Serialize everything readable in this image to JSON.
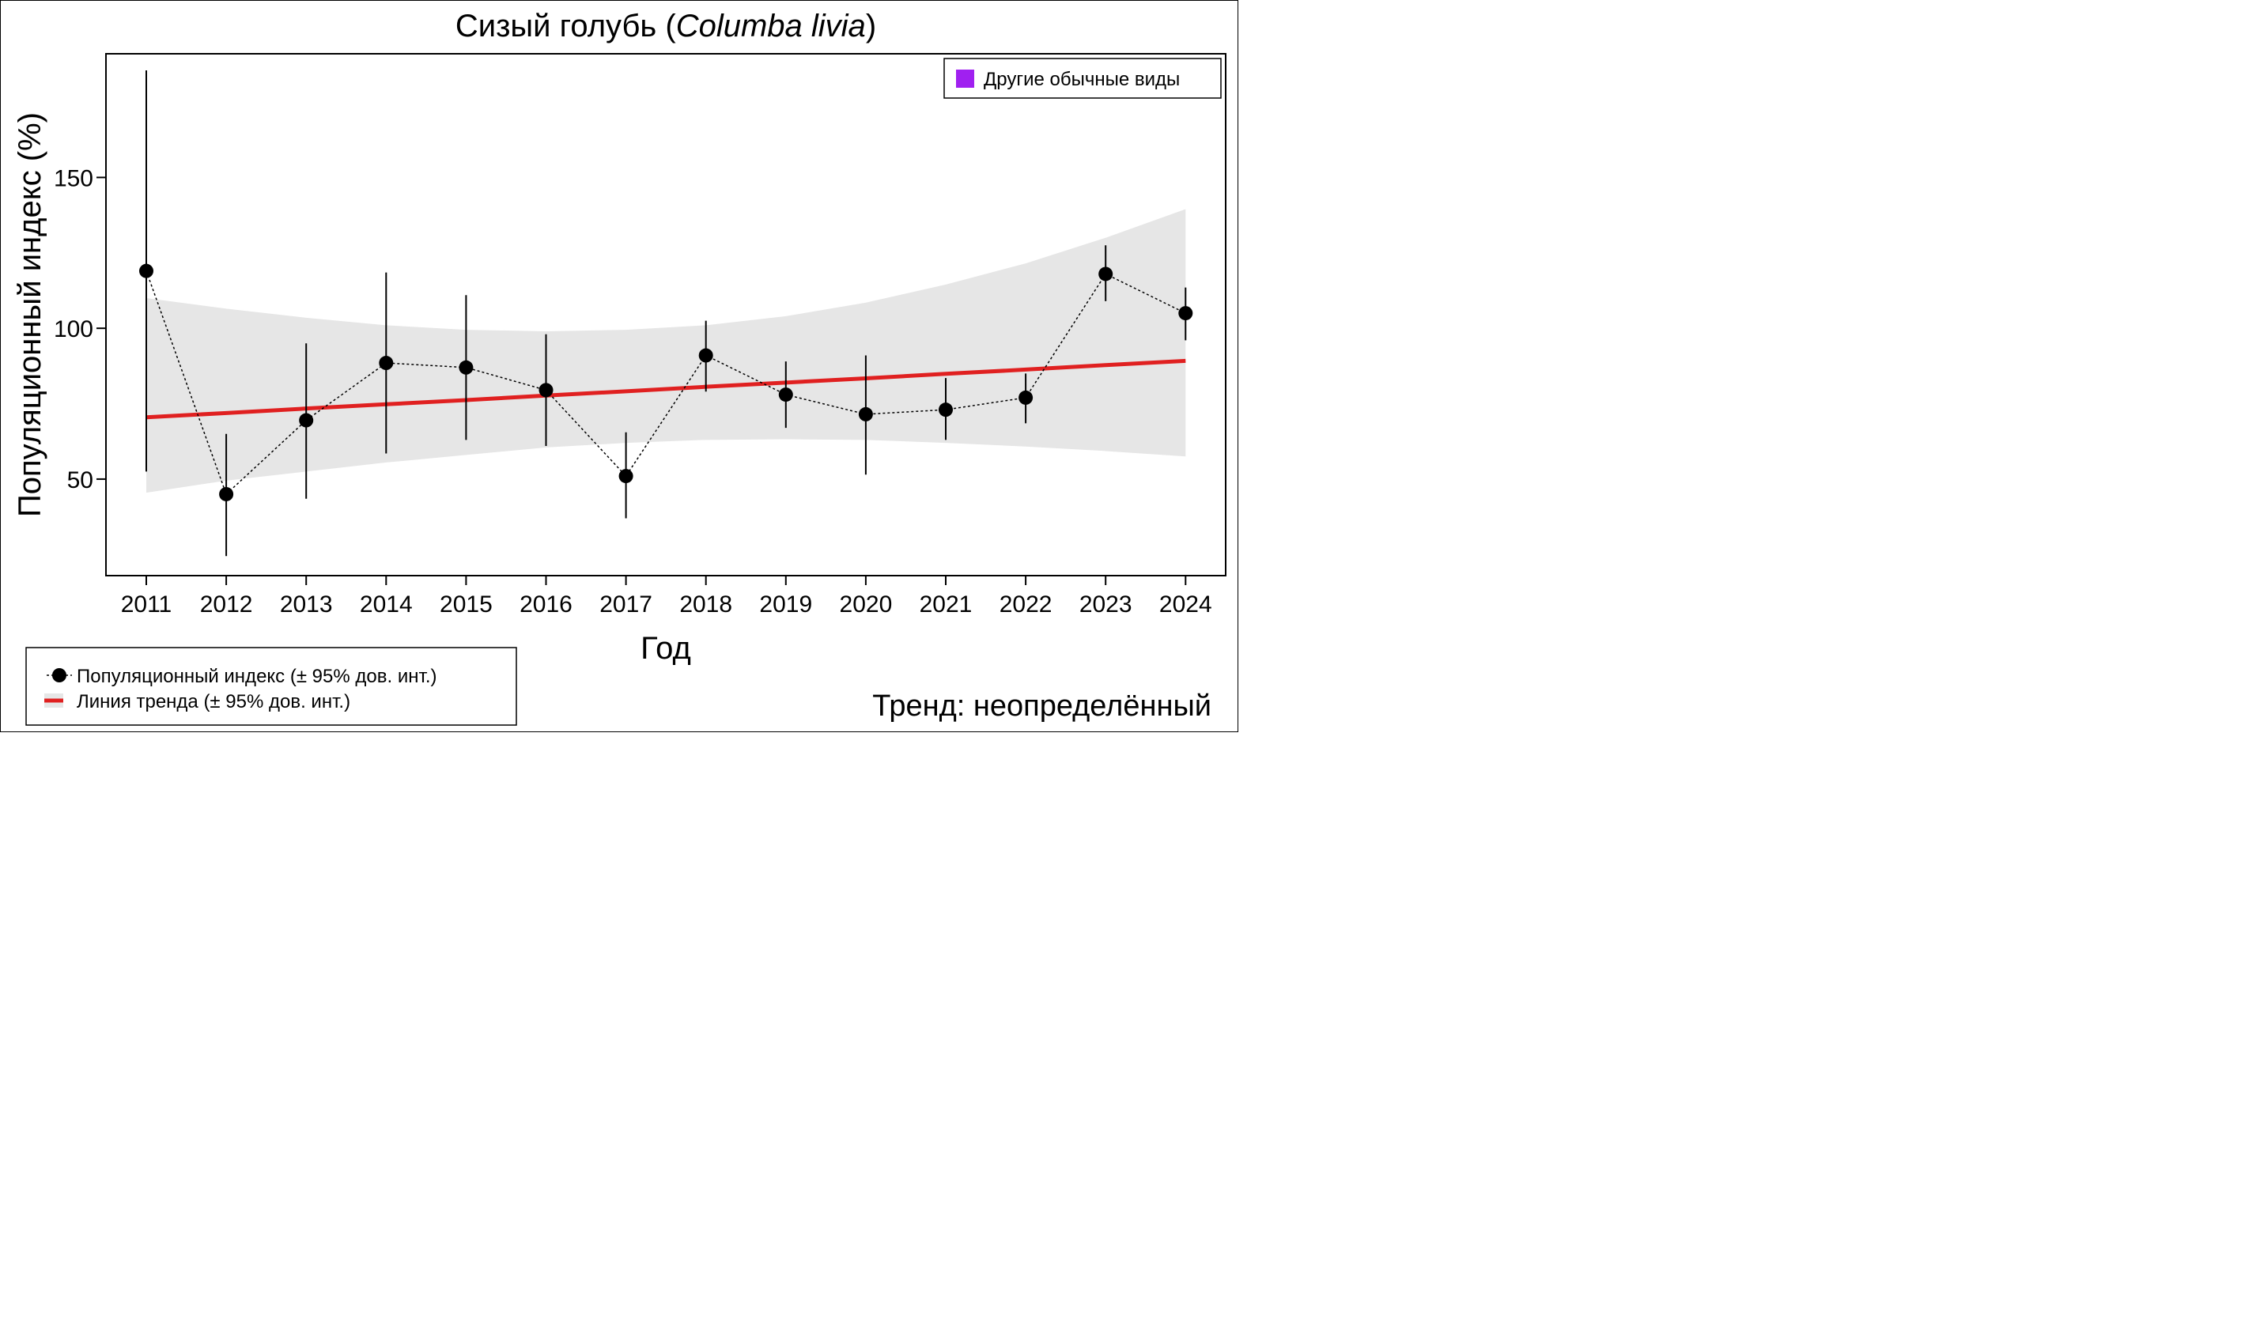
{
  "chart_data": {
    "type": "line",
    "title": {
      "common_name": "Сизый голубь",
      "open_paren": "(",
      "latin_name": "Columba livia",
      "close_paren": ")"
    },
    "xlabel": "Год",
    "ylabel": "Популяционный индекс (%)",
    "categories": [
      "2011",
      "2012",
      "2013",
      "2014",
      "2015",
      "2016",
      "2017",
      "2018",
      "2019",
      "2020",
      "2021",
      "2022",
      "2023",
      "2024"
    ],
    "yticks": [
      50,
      100,
      150
    ],
    "ylim": [
      18,
      191
    ],
    "series": [
      {
        "name": "Популяционный индекс (± 95% дов. инт.)",
        "values": [
          119,
          45,
          69.5,
          88.5,
          87,
          79.5,
          51,
          91,
          78,
          71.5,
          73,
          77,
          118,
          105
        ],
        "ci_low": [
          52.5,
          24.5,
          43.5,
          58.5,
          63,
          61,
          37,
          79,
          67,
          51.5,
          63,
          68.5,
          109,
          96
        ],
        "ci_high": [
          185.5,
          65,
          95,
          118.5,
          111,
          98,
          65.5,
          102.5,
          89,
          91,
          83.5,
          85,
          127.5,
          113.5
        ]
      }
    ],
    "trend": {
      "name": "Линия тренда (± 95% дов. инт.)",
      "values": [
        70.5,
        71.9,
        73.4,
        74.8,
        76.2,
        77.7,
        79.1,
        80.6,
        82.0,
        83.4,
        84.9,
        86.3,
        87.8,
        89.2
      ],
      "ci_low": [
        45.5,
        49.5,
        52.5,
        55.5,
        58,
        60.5,
        62,
        63,
        63.2,
        63,
        62,
        60.8,
        59.3,
        57.5
      ],
      "ci_high": [
        110,
        106.5,
        103.5,
        101,
        99.5,
        99,
        99.5,
        101,
        104,
        108.5,
        114.5,
        121.5,
        130,
        139.5
      ]
    },
    "legend_top": {
      "label": "Другие обычные виды",
      "color": "#a020f0"
    },
    "legend_bottom": [
      {
        "label": "Популяционный индекс (± 95% дов. инт.)"
      },
      {
        "label": "Линия тренда (± 95% дов. инт.)"
      }
    ],
    "trend_text": "Тренд: неопределённый",
    "colors": {
      "trend_line": "#e02020",
      "trend_band": "#e6e6e6",
      "points": "#000000"
    }
  }
}
